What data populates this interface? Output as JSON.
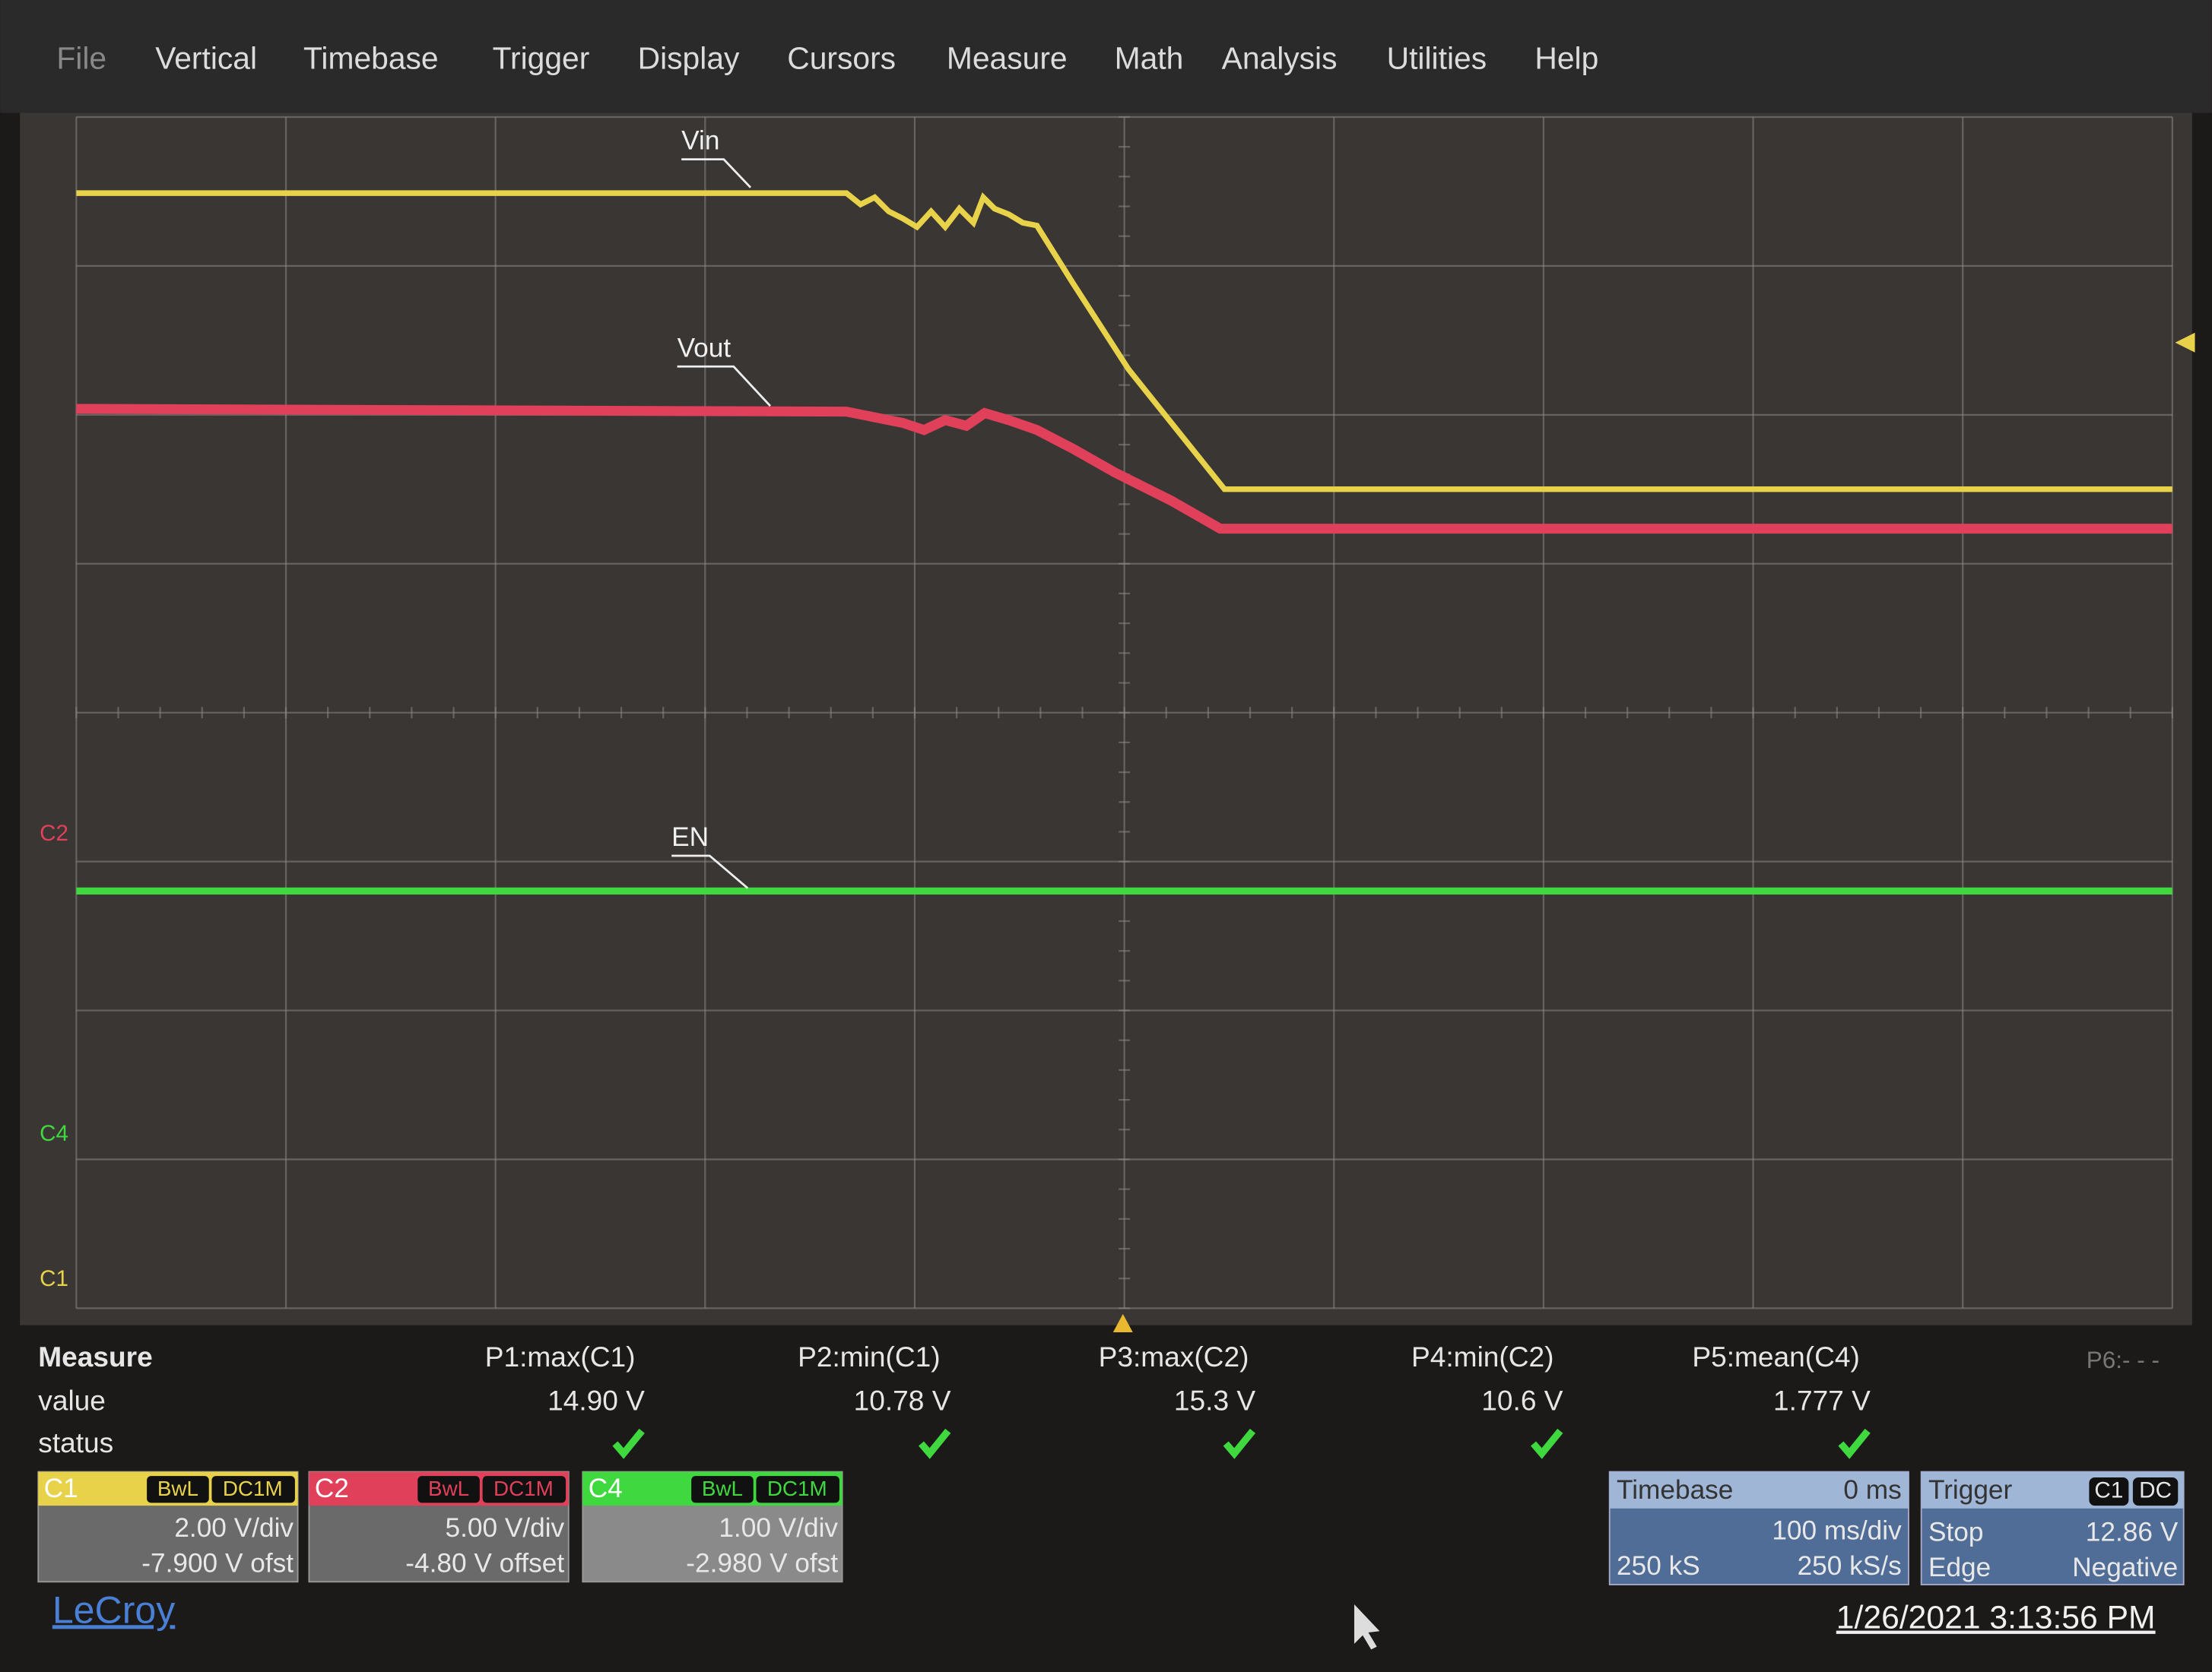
{
  "menu": [
    "File",
    "Vertical",
    "Timebase",
    "Trigger",
    "Display",
    "Cursors",
    "Measure",
    "Math",
    "Analysis",
    "Utilities",
    "Help"
  ],
  "traces": {
    "vin": "Vin",
    "vout": "Vout",
    "en": "EN"
  },
  "channel_markers": {
    "c2": "C2",
    "c4": "C4",
    "c1": "C1"
  },
  "measure": {
    "title": "Measure",
    "row_labels": [
      "value",
      "status"
    ],
    "columns": [
      {
        "name": "P1:max(C1)",
        "value": "14.90 V"
      },
      {
        "name": "P2:min(C1)",
        "value": "10.78 V"
      },
      {
        "name": "P3:max(C2)",
        "value": "15.3 V"
      },
      {
        "name": "P4:min(C2)",
        "value": "10.6 V"
      },
      {
        "name": "P5:mean(C4)",
        "value": "1.777 V"
      },
      {
        "name": "P6:- - -"
      }
    ]
  },
  "channels": [
    {
      "id": "C1",
      "bandwidth": "BwL",
      "coupling": "DC1M",
      "scale": "2.00 V/div",
      "offset": "-7.900 V ofst"
    },
    {
      "id": "C2",
      "bandwidth": "BwL",
      "coupling": "DC1M",
      "scale": "5.00 V/div",
      "offset": "-4.80 V offset"
    },
    {
      "id": "C4",
      "bandwidth": "BwL",
      "coupling": "DC1M",
      "scale": "1.00 V/div",
      "offset": "-2.980 V ofst"
    }
  ],
  "timebase": {
    "title": "Timebase",
    "delay": "0 ms",
    "scale": "100 ms/div",
    "samples": "250 kS",
    "rate": "250 kS/s"
  },
  "trigger": {
    "title": "Trigger",
    "source": "C1",
    "coupling": "DC",
    "mode": "Stop",
    "level": "12.86 V",
    "type": "Edge",
    "slope": "Negative"
  },
  "brand": "LeCroy",
  "datetime": "1/26/2021 3:13:56 PM"
}
